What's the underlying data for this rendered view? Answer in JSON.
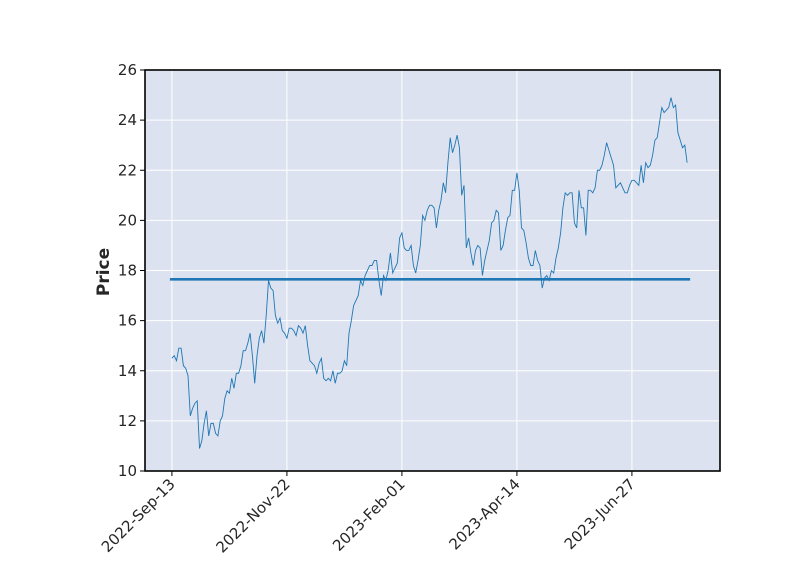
{
  "chart_data": {
    "type": "line",
    "ylabel": "Price",
    "ylim": [
      10,
      26
    ],
    "yticks": [
      10,
      12,
      14,
      16,
      18,
      20,
      22,
      24,
      26
    ],
    "xlim": [
      -11.7,
      238.3
    ],
    "xticks": [
      {
        "value": 0,
        "label": "2022-Sep-13"
      },
      {
        "value": 50,
        "label": "2022-Nov-22"
      },
      {
        "value": 100,
        "label": "2023-Feb-01"
      },
      {
        "value": 150,
        "label": "2023-Apr-14"
      },
      {
        "value": 200,
        "label": "2023-Jun-27"
      }
    ],
    "grid": true,
    "background": "#dce2ef",
    "series": [
      {
        "color": "#1f77b4",
        "values": [
          14.5,
          14.6,
          14.4,
          14.9,
          14.9,
          14.2,
          14.1,
          13.8,
          12.2,
          12.5,
          12.7,
          12.8,
          10.9,
          11.2,
          11.9,
          12.4,
          11.4,
          11.9,
          11.9,
          11.5,
          11.4,
          12.0,
          12.2,
          12.9,
          13.2,
          13.1,
          13.7,
          13.3,
          13.9,
          13.9,
          14.2,
          14.8,
          14.8,
          15.1,
          15.5,
          14.6,
          13.5,
          14.6,
          15.3,
          15.6,
          15.1,
          16.2,
          17.6,
          17.3,
          17.2,
          16.2,
          15.9,
          16.1,
          15.6,
          15.5,
          15.3,
          15.7,
          15.7,
          15.6,
          15.4,
          15.8,
          15.7,
          15.5,
          15.8,
          15.0,
          14.4,
          14.3,
          14.2,
          13.9,
          14.3,
          14.5,
          13.7,
          13.6,
          13.7,
          13.6,
          14.0,
          13.5,
          13.9,
          13.9,
          14.0,
          14.4,
          14.2,
          15.5,
          16.0,
          16.6,
          16.8,
          17.0,
          17.6,
          17.4,
          17.8,
          18.0,
          18.2,
          18.2,
          18.4,
          18.4,
          17.6,
          17.0,
          17.8,
          17.6,
          18.0,
          18.7,
          17.9,
          18.1,
          18.3,
          19.3,
          19.5,
          18.9,
          18.8,
          18.8,
          19.0,
          18.2,
          17.9,
          18.4,
          19.0,
          20.2,
          20.0,
          20.4,
          20.6,
          20.6,
          20.5,
          19.7,
          20.4,
          20.8,
          21.5,
          21.1,
          22.3,
          23.3,
          22.7,
          23.0,
          23.4,
          22.9,
          21.0,
          21.4,
          18.9,
          19.3,
          18.7,
          18.2,
          18.8,
          19.0,
          18.9,
          17.8,
          18.4,
          18.8,
          19.2,
          19.9,
          20.0,
          20.4,
          20.3,
          18.8,
          19.0,
          19.6,
          20.1,
          20.2,
          21.2,
          21.2,
          21.9,
          21.2,
          19.7,
          19.6,
          19.1,
          18.5,
          18.2,
          18.2,
          18.8,
          18.4,
          18.2,
          17.3,
          17.7,
          17.8,
          17.6,
          18.0,
          17.9,
          18.5,
          18.9,
          19.5,
          20.5,
          21.1,
          21.0,
          21.1,
          21.1,
          19.9,
          19.7,
          21.2,
          20.5,
          20.5,
          19.4,
          21.2,
          21.2,
          21.1,
          21.3,
          22.0,
          22.0,
          22.2,
          22.6,
          23.1,
          22.8,
          22.5,
          22.2,
          21.3,
          21.4,
          21.5,
          21.3,
          21.1,
          21.1,
          21.4,
          21.6,
          21.6,
          21.5,
          21.4,
          22.2,
          21.5,
          22.3,
          22.1,
          22.2,
          22.6,
          23.2,
          23.3,
          23.9,
          24.5,
          24.3,
          24.4,
          24.5,
          24.9,
          24.5,
          24.6,
          23.5,
          23.2,
          22.9,
          23.0,
          22.3
        ]
      }
    ],
    "hlines": [
      {
        "value": 17.65,
        "color": "#1f77b4"
      }
    ]
  }
}
